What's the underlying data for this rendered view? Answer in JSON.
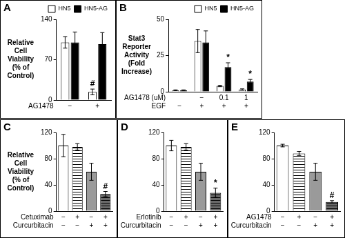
{
  "chart_data": [
    {
      "type": "bar",
      "title": "A",
      "y_label": [
        "Relative",
        "Cell",
        "Viability",
        "(% of",
        "Control)"
      ],
      "series": [
        {
          "name": "HN5",
          "color": "#ffffff",
          "values": [
            100,
            14
          ],
          "errors": [
            10,
            5
          ],
          "annotations": [
            null,
            "#"
          ]
        },
        {
          "name": "HN5-AG",
          "color": "#000000",
          "values": [
            100,
            97
          ],
          "errors": [
            18,
            20
          ]
        }
      ],
      "treatment_rows": [
        {
          "label": "AG1478",
          "values": [
            "−",
            "+"
          ]
        }
      ],
      "ylim": [
        0,
        140
      ],
      "yticks": [
        0,
        70,
        140
      ],
      "legend": "upper right",
      "grid": false
    },
    {
      "type": "bar",
      "title": "B",
      "y_label": [
        "Stat3",
        "Reporter",
        "Activity",
        "(Fold",
        "Increase)"
      ],
      "series": [
        {
          "name": "HN5",
          "color": "#ffffff",
          "values": [
            1,
            35,
            4,
            1.5
          ],
          "errors": [
            0.3,
            8,
            0.5,
            0.5
          ]
        },
        {
          "name": "HN5-AG",
          "color": "#000000",
          "values": [
            1,
            34,
            17,
            7
          ],
          "errors": [
            0.3,
            8,
            3,
            1.5
          ],
          "annotations": [
            null,
            null,
            "*",
            "*"
          ]
        }
      ],
      "treatment_rows": [
        {
          "label": "AG1478 (uM)",
          "values": [
            null,
            "−",
            "0.1",
            "1"
          ]
        },
        {
          "label": "EGF",
          "values": [
            "−",
            "+",
            "+",
            "+"
          ]
        }
      ],
      "ylim": [
        0,
        50
      ],
      "yticks": [
        0,
        25,
        50
      ],
      "legend": "upper right",
      "grid": false
    },
    {
      "type": "bar",
      "title": "C",
      "y_label": [
        "Relative",
        "Cell",
        "Viability",
        "(% of",
        "Control)"
      ],
      "values": [
        100,
        98,
        60,
        26
      ],
      "errors": [
        17,
        5,
        13,
        4
      ],
      "annotations": [
        null,
        null,
        null,
        "#"
      ],
      "colors": [
        "#ffffff",
        "#ffffff",
        "#9a9a9a",
        "#6a6a6a"
      ],
      "treatment_rows": [
        {
          "label": "Cetuximab",
          "values": [
            "−",
            "+",
            "−",
            "+"
          ]
        },
        {
          "label": "Curcurbitacin",
          "values": [
            "−",
            "−",
            "+",
            "+"
          ]
        }
      ],
      "ylim": [
        0,
        120
      ],
      "yticks": [
        0,
        40,
        80,
        120
      ],
      "grid": false
    },
    {
      "type": "bar",
      "title": "D",
      "values": [
        100,
        98,
        60,
        28
      ],
      "errors": [
        8,
        5,
        13,
        7
      ],
      "annotations": [
        null,
        null,
        null,
        "*"
      ],
      "colors": [
        "#ffffff",
        "#ffffff",
        "#9a9a9a",
        "#6a6a6a"
      ],
      "treatment_rows": [
        {
          "label": "Erlotinib",
          "values": [
            "−",
            "+",
            "−",
            "+"
          ]
        },
        {
          "label": "Curcurbitacin",
          "values": [
            "−",
            "−",
            "+",
            "+"
          ]
        }
      ],
      "ylim": [
        0,
        120
      ],
      "yticks": [
        0,
        40,
        80,
        120
      ],
      "grid": false
    },
    {
      "type": "bar",
      "title": "E",
      "values": [
        100,
        88,
        60,
        14
      ],
      "errors": [
        2,
        3,
        13,
        2
      ],
      "annotations": [
        null,
        null,
        null,
        "#"
      ],
      "colors": [
        "#ffffff",
        "#ffffff",
        "#9a9a9a",
        "#6a6a6a"
      ],
      "treatment_rows": [
        {
          "label": "AG1478",
          "values": [
            "−",
            "+",
            "−",
            "+"
          ]
        },
        {
          "label": "Curcurbitacin",
          "values": [
            "−",
            "−",
            "+",
            "+"
          ]
        }
      ],
      "ylim": [
        0,
        120
      ],
      "yticks": [
        0,
        40,
        80,
        120
      ],
      "grid": false
    }
  ]
}
